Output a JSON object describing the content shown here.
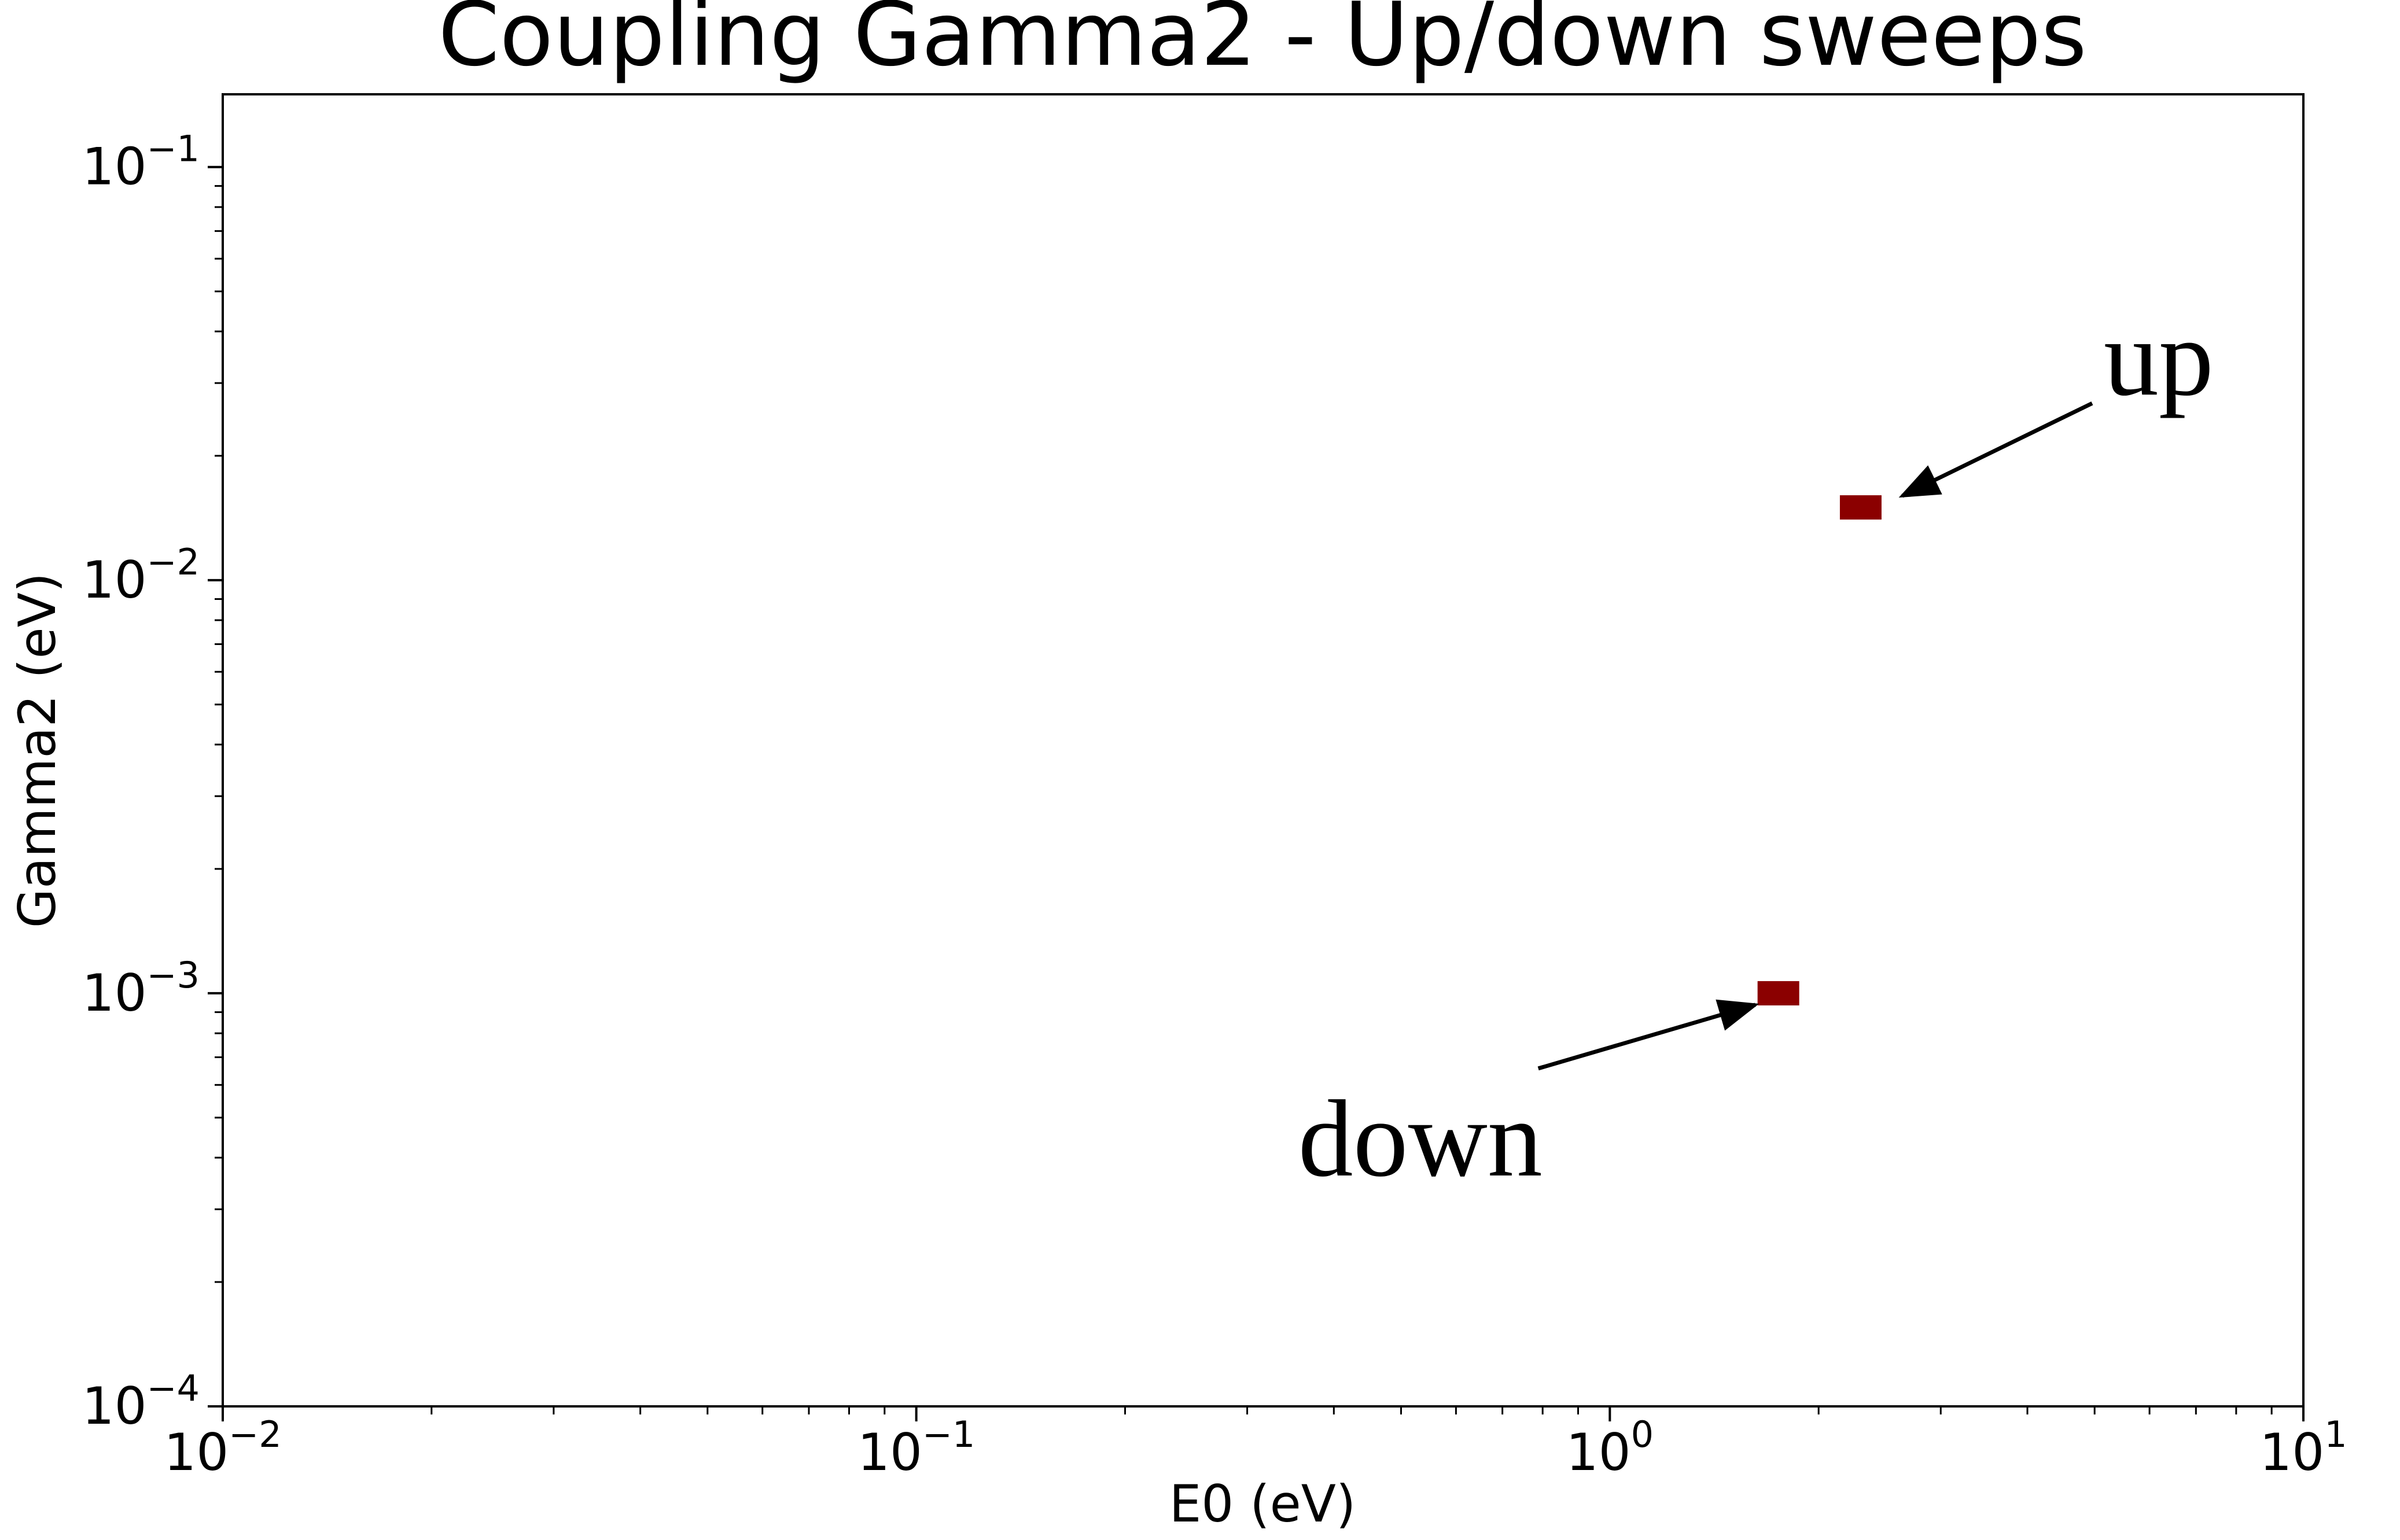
{
  "chart_data": {
    "type": "scatter",
    "title": "Coupling Gamma2 - Up/down sweeps",
    "xlabel": "E0 (eV)",
    "ylabel": "Gamma2 (eV)",
    "xscale": "log",
    "yscale": "log",
    "xlim": [
      0.01,
      10
    ],
    "ylim": [
      0.0001,
      0.15
    ],
    "x_ticks": [
      {
        "value": 0.01,
        "base": "10",
        "exp": "−2"
      },
      {
        "value": 0.1,
        "base": "10",
        "exp": "−1"
      },
      {
        "value": 1,
        "base": "10",
        "exp": "0"
      },
      {
        "value": 10,
        "base": "10",
        "exp": "1"
      }
    ],
    "y_ticks": [
      {
        "value": 0.0001,
        "base": "10",
        "exp": "−4"
      },
      {
        "value": 0.001,
        "base": "10",
        "exp": "−3"
      },
      {
        "value": 0.01,
        "base": "10",
        "exp": "−2"
      },
      {
        "value": 0.1,
        "base": "10",
        "exp": "−1"
      }
    ],
    "grid": false,
    "marker_color": "#8b0000",
    "points": [
      {
        "x": 2.3,
        "y": 0.015
      },
      {
        "x": 1.75,
        "y": 0.001
      }
    ],
    "annotations": [
      {
        "text": "up",
        "point_index": 0
      },
      {
        "text": "down",
        "point_index": 1
      }
    ]
  }
}
